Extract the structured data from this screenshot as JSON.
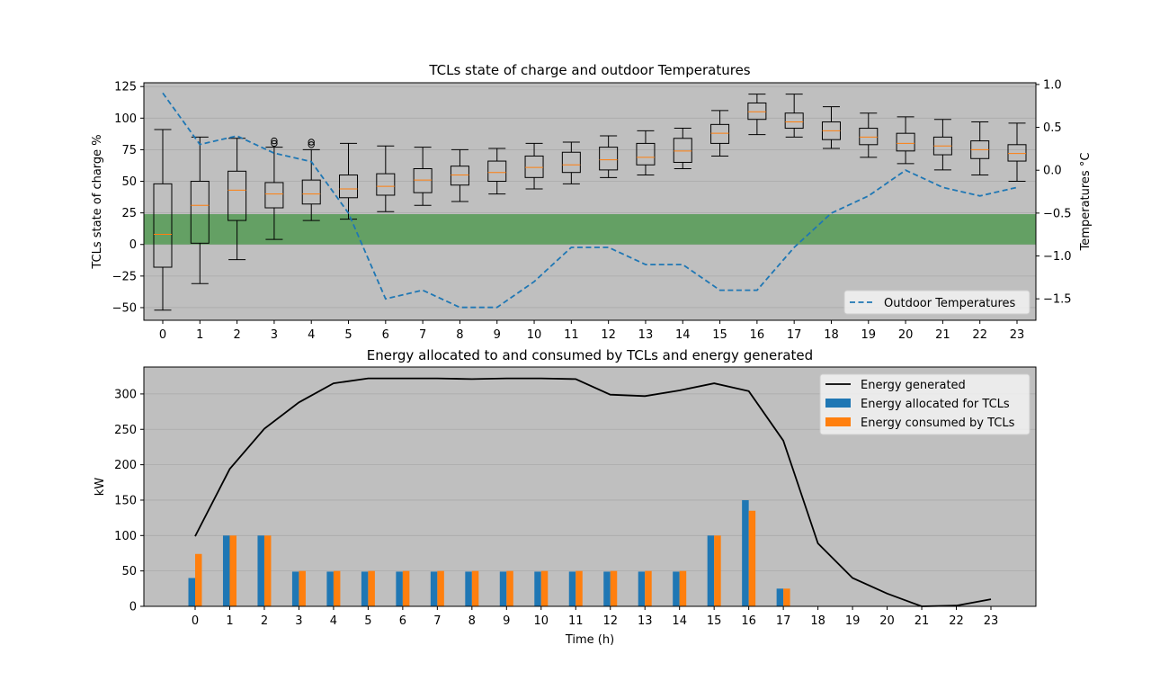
{
  "chart_data": [
    {
      "type": "box",
      "title": "TCLs state of charge and outdoor Temperatures",
      "xlabel": "",
      "ylabel": "TCLs state of charge %",
      "y2label": "Temperatures °C",
      "categories": [
        "0",
        "1",
        "2",
        "3",
        "4",
        "5",
        "6",
        "7",
        "8",
        "9",
        "10",
        "11",
        "12",
        "13",
        "14",
        "15",
        "16",
        "17",
        "18",
        "19",
        "20",
        "21",
        "22",
        "23"
      ],
      "ylim": [
        -60,
        128
      ],
      "yticks": [
        "125",
        "100",
        "75",
        "50",
        "25",
        "0",
        "−25",
        "−50"
      ],
      "y2lim": [
        -1.75,
        1.02
      ],
      "y2ticks": [
        "1.0",
        "0.5",
        "0.0",
        "−0.5",
        "−1.0",
        "−1.5"
      ],
      "band": {
        "from": 0,
        "to": 24,
        "color": "#5f9e5f"
      },
      "boxes": [
        {
          "whislo": -52,
          "q1": -18,
          "med": 8,
          "q3": 48,
          "whishi": 91,
          "fliers": []
        },
        {
          "whislo": -31,
          "q1": 1,
          "med": 31,
          "q3": 50,
          "whishi": 85,
          "fliers": []
        },
        {
          "whislo": -12,
          "q1": 19,
          "med": 43,
          "q3": 58,
          "whishi": 84,
          "fliers": []
        },
        {
          "whislo": 4,
          "q1": 29,
          "med": 40,
          "q3": 49,
          "whishi": 77,
          "fliers": [
            80,
            82
          ]
        },
        {
          "whislo": 19,
          "q1": 32,
          "med": 40,
          "q3": 51,
          "whishi": 75,
          "fliers": [
            79,
            81
          ]
        },
        {
          "whislo": 20,
          "q1": 37,
          "med": 44,
          "q3": 55,
          "whishi": 80,
          "fliers": []
        },
        {
          "whislo": 26,
          "q1": 39,
          "med": 46,
          "q3": 56,
          "whishi": 78,
          "fliers": []
        },
        {
          "whislo": 31,
          "q1": 41,
          "med": 51,
          "q3": 60,
          "whishi": 77,
          "fliers": []
        },
        {
          "whislo": 34,
          "q1": 47,
          "med": 55,
          "q3": 62,
          "whishi": 75,
          "fliers": []
        },
        {
          "whislo": 40,
          "q1": 50,
          "med": 57,
          "q3": 66,
          "whishi": 76,
          "fliers": []
        },
        {
          "whislo": 44,
          "q1": 53,
          "med": 61,
          "q3": 70,
          "whishi": 80,
          "fliers": []
        },
        {
          "whislo": 48,
          "q1": 57,
          "med": 63,
          "q3": 73,
          "whishi": 81,
          "fliers": []
        },
        {
          "whislo": 53,
          "q1": 59,
          "med": 67,
          "q3": 77,
          "whishi": 86,
          "fliers": []
        },
        {
          "whislo": 55,
          "q1": 63,
          "med": 69,
          "q3": 80,
          "whishi": 90,
          "fliers": []
        },
        {
          "whislo": 60,
          "q1": 65,
          "med": 74,
          "q3": 84,
          "whishi": 92,
          "fliers": []
        },
        {
          "whislo": 70,
          "q1": 80,
          "med": 88,
          "q3": 95,
          "whishi": 106,
          "fliers": []
        },
        {
          "whislo": 87,
          "q1": 99,
          "med": 105,
          "q3": 112,
          "whishi": 119,
          "fliers": []
        },
        {
          "whislo": 85,
          "q1": 92,
          "med": 97,
          "q3": 104,
          "whishi": 119,
          "fliers": []
        },
        {
          "whislo": 76,
          "q1": 83,
          "med": 90,
          "q3": 97,
          "whishi": 109,
          "fliers": []
        },
        {
          "whislo": 69,
          "q1": 79,
          "med": 85,
          "q3": 92,
          "whishi": 104,
          "fliers": []
        },
        {
          "whislo": 64,
          "q1": 74,
          "med": 80,
          "q3": 88,
          "whishi": 101,
          "fliers": []
        },
        {
          "whislo": 59,
          "q1": 71,
          "med": 78,
          "q3": 85,
          "whishi": 99,
          "fliers": []
        },
        {
          "whislo": 55,
          "q1": 68,
          "med": 75,
          "q3": 82,
          "whishi": 97,
          "fliers": []
        },
        {
          "whislo": 50,
          "q1": 66,
          "med": 72,
          "q3": 79,
          "whishi": 96,
          "fliers": []
        }
      ],
      "temperature": {
        "name": "Outdoor Temperatures",
        "color": "#1f77b4",
        "values": [
          0.9,
          0.3,
          0.4,
          0.2,
          0.1,
          -0.5,
          -1.5,
          -1.4,
          -1.6,
          -1.6,
          -1.3,
          -0.9,
          -0.9,
          -1.1,
          -1.1,
          -1.4,
          -1.4,
          -0.9,
          -0.5,
          -0.3,
          0.0,
          -0.2,
          -0.3,
          -0.2
        ]
      },
      "legend_position": "lower-right"
    },
    {
      "type": "bar+line",
      "title": "Energy allocated to and consumed by TCLs and energy generated",
      "xlabel": "Time (h)",
      "ylabel": "kW",
      "categories": [
        "0",
        "1",
        "2",
        "3",
        "4",
        "5",
        "6",
        "7",
        "8",
        "9",
        "10",
        "11",
        "12",
        "13",
        "14",
        "15",
        "16",
        "17",
        "18",
        "19",
        "20",
        "21",
        "22",
        "23"
      ],
      "ylim": [
        0,
        338
      ],
      "yticks": [
        "300",
        "250",
        "200",
        "150",
        "100",
        "50",
        "0"
      ],
      "series": [
        {
          "name": "Energy generated",
          "kind": "line",
          "color": "#000000",
          "values": [
            99,
            194,
            251,
            288,
            315,
            322,
            322,
            322,
            321,
            322,
            322,
            321,
            299,
            297,
            305,
            315,
            304,
            234,
            89,
            40,
            18,
            0,
            1,
            10
          ]
        },
        {
          "name": "Energy allocated for TCLs",
          "kind": "bar",
          "color": "#1f77b4",
          "values": [
            40,
            100,
            100,
            49,
            49,
            49,
            49,
            49,
            49,
            49,
            49,
            49,
            49,
            49,
            49,
            100,
            150,
            25,
            0,
            0,
            0,
            0,
            0,
            0
          ]
        },
        {
          "name": "Energy consumed by TCLs",
          "kind": "bar",
          "color": "#ff7f0e",
          "values": [
            74,
            100,
            100,
            50,
            50,
            50,
            50,
            50,
            50,
            50,
            50,
            50,
            50,
            50,
            50,
            100,
            135,
            25,
            0,
            0,
            0,
            0,
            0,
            0
          ]
        }
      ],
      "grid": "y",
      "legend_position": "upper-right"
    }
  ]
}
